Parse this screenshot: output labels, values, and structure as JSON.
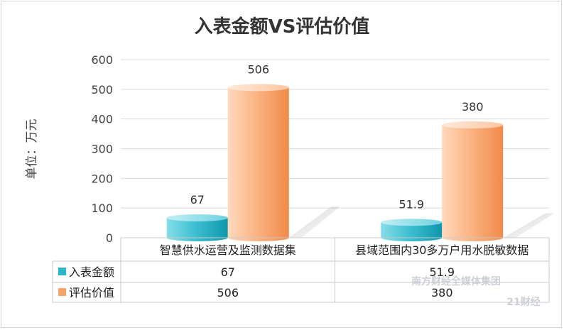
{
  "chart_data": {
    "type": "bar",
    "title": "入表金额VS评估价值",
    "ylabel": "单位：万元",
    "xlabel": "",
    "ylim": [
      0,
      600
    ],
    "yticks": [
      0,
      100,
      200,
      300,
      400,
      500,
      600
    ],
    "categories": [
      "智慧供水运营及监测数据集",
      "县域范围内30多万户用水脱敏数据"
    ],
    "series": [
      {
        "name": "入表金额",
        "values": [
          67,
          51.9
        ],
        "labels": [
          "67",
          "51.9"
        ],
        "color": "#2bb6c9"
      },
      {
        "name": "评估价值",
        "values": [
          506,
          380
        ],
        "labels": [
          "506",
          "380"
        ],
        "color": "#f8a36a"
      }
    ],
    "grid": true,
    "legend": "bottom-table"
  },
  "watermark": {
    "line1": "南方财经全媒体集团",
    "line2": "21财经"
  }
}
